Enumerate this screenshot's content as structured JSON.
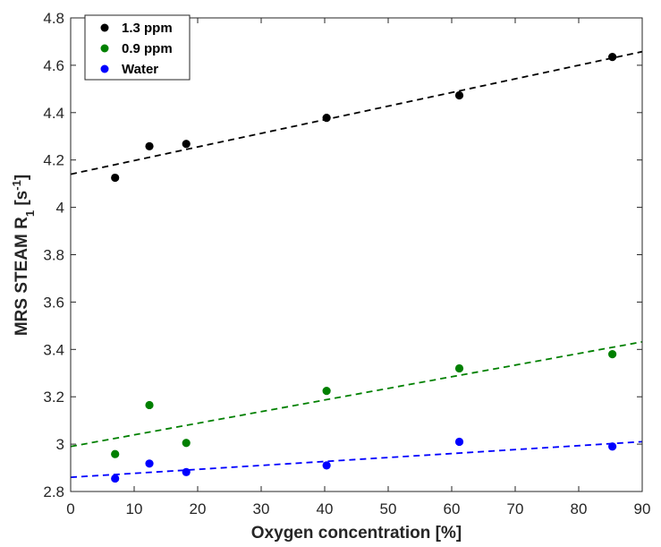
{
  "chart_data": {
    "type": "scatter",
    "xlabel": "Oxygen concentration [%]",
    "ylabel": {
      "text": "MRS STEAM R",
      "subscript": "1",
      "unit_open": " [s",
      "unit_sup": "-1",
      "unit_close": "]"
    },
    "xlim": [
      0,
      90
    ],
    "ylim": [
      2.8,
      4.8
    ],
    "xticks": [
      0,
      10,
      20,
      30,
      40,
      50,
      60,
      70,
      80,
      90
    ],
    "xtick_labels": [
      "0",
      "10",
      "20",
      "30",
      "40",
      "50",
      "60",
      "70",
      "80",
      "90"
    ],
    "yticks": [
      2.8,
      3.0,
      3.2,
      3.4,
      3.6,
      3.8,
      4.0,
      4.2,
      4.4,
      4.6,
      4.8
    ],
    "ytick_labels": [
      "2.8",
      "3",
      "3.2",
      "3.4",
      "3.6",
      "3.8",
      "4",
      "4.2",
      "4.4",
      "4.6",
      "4.8"
    ],
    "grid": false,
    "legend_position": "top-left",
    "series": [
      {
        "name": "1.3 ppm",
        "color": "#000000",
        "x": [
          7,
          12.4,
          18.2,
          40.3,
          61.2,
          85.3
        ],
        "y": [
          4.125,
          4.258,
          4.268,
          4.378,
          4.473,
          4.635
        ],
        "fit": {
          "intercept": 4.14,
          "slope": 0.00575,
          "x_range": [
            0,
            90
          ]
        }
      },
      {
        "name": "0.9 ppm",
        "color": "#008000",
        "x": [
          7,
          12.4,
          18.2,
          40.3,
          61.2,
          85.3
        ],
        "y": [
          2.958,
          3.165,
          3.005,
          3.225,
          3.32,
          3.38
        ],
        "fit": {
          "intercept": 2.99,
          "slope": 0.00491,
          "x_range": [
            0,
            90
          ]
        }
      },
      {
        "name": "Water",
        "color": "#0000ff",
        "x": [
          7,
          12.4,
          18.2,
          40.3,
          61.2,
          85.3
        ],
        "y": [
          2.855,
          2.918,
          2.882,
          2.91,
          3.01,
          2.99
        ],
        "fit": {
          "intercept": 2.86,
          "slope": 0.00167,
          "x_range": [
            0,
            90
          ]
        }
      }
    ]
  }
}
